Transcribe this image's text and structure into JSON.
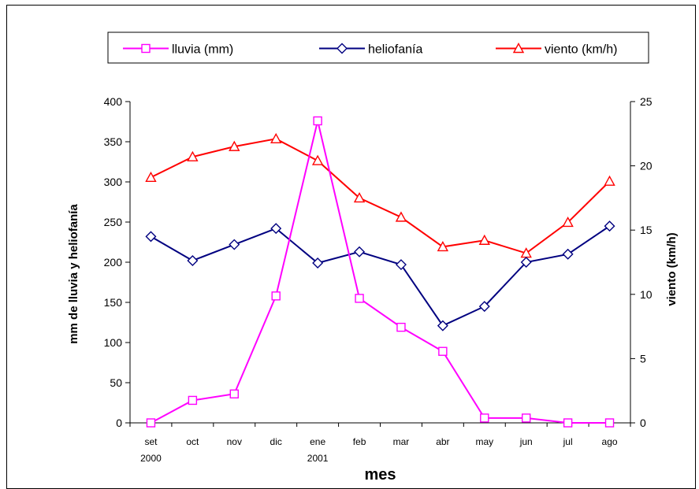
{
  "chart_data": {
    "type": "line",
    "categories": [
      [
        "set",
        "2000"
      ],
      [
        "oct",
        ""
      ],
      [
        "nov",
        ""
      ],
      [
        "dic",
        ""
      ],
      [
        "ene",
        "2001"
      ],
      [
        "feb",
        ""
      ],
      [
        "mar",
        ""
      ],
      [
        "abr",
        ""
      ],
      [
        "may",
        ""
      ],
      [
        "jun",
        ""
      ],
      [
        "jul",
        ""
      ],
      [
        "ago",
        ""
      ]
    ],
    "xlabel": "mes",
    "ylabel_left": "mm de lluvia  y  heliofanía",
    "ylabel_right": "viento (km/h)",
    "ylim_left": [
      0,
      400
    ],
    "yticks_left": [
      0,
      50,
      100,
      150,
      200,
      250,
      300,
      350,
      400
    ],
    "ylim_right": [
      0,
      25
    ],
    "yticks_right": [
      0,
      5,
      10,
      15,
      20,
      25
    ],
    "grid": false,
    "legend_position": "top",
    "series": [
      {
        "name": "lluvia (mm)",
        "axis": "left",
        "color": "#ff00ff",
        "marker": "square",
        "values": [
          0,
          28,
          36,
          158,
          376,
          155,
          119,
          89,
          6,
          6,
          0,
          0
        ]
      },
      {
        "name": "heliofanía",
        "axis": "left",
        "color": "#000080",
        "marker": "diamond",
        "values": [
          232,
          202,
          222,
          242,
          199,
          213,
          197,
          121,
          145,
          200,
          210,
          245
        ]
      },
      {
        "name": "viento (km/h)",
        "axis": "right",
        "color": "#ff0000",
        "marker": "triangle",
        "values": [
          19.1,
          20.7,
          21.5,
          22.1,
          20.4,
          17.5,
          16.0,
          13.7,
          14.2,
          13.2,
          15.6,
          18.8
        ]
      }
    ]
  }
}
